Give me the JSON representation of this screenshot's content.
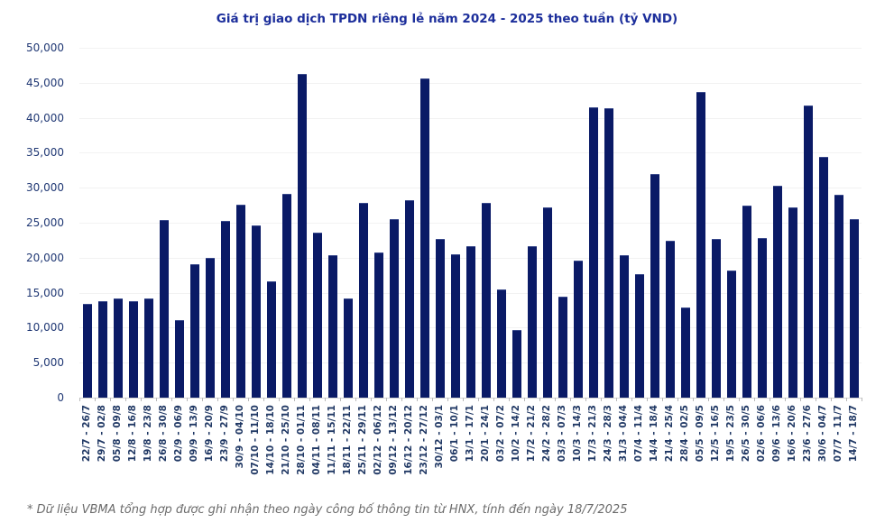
{
  "title": "Giá trị giao dịch TPDN riêng lẻ năm 2024 - 2025 theo tuần (tỷ VND)",
  "footnote": "* Dữ liệu VBMA tổng hợp được ghi nhận theo ngày công bố thông tin từ HNX, tính đến ngày 18/7/2025",
  "colors": {
    "bar": "#0a1a66",
    "title": "#1c2e9b",
    "axis_label": "#203864",
    "gridline": "#f2f2f2",
    "footnote": "#6b6b6b"
  },
  "chart_data": {
    "type": "bar",
    "title": "Giá trị giao dịch TPDN riêng lẻ năm 2024 - 2025 theo tuần (tỷ VND)",
    "xlabel": "",
    "ylabel": "tỷ VND",
    "ylim": [
      0,
      50000
    ],
    "y_tick_step": 5000,
    "y_tick_labels": [
      "0",
      "5,000",
      "10,000",
      "15,000",
      "20,000",
      "25,000",
      "30,000",
      "35,000",
      "40,000",
      "45,000",
      "50,000"
    ],
    "grid": "horizontal",
    "legend": "none",
    "categories": [
      "22/7 - 26/7",
      "29/7 - 02/8",
      "05/8 - 09/8",
      "12/8 - 16/8",
      "19/8 - 23/8",
      "26/8 - 30/8",
      "02/9 - 06/9",
      "09/9 - 13/9",
      "16/9 - 20/9",
      "23/9 - 27/9",
      "30/9 - 04/10",
      "07/10 - 11/10",
      "14/10 - 18/10",
      "21/10 - 25/10",
      "28/10 - 01/11",
      "04/11 - 08/11",
      "11/11 - 15/11",
      "18/11 - 22/11",
      "25/11 - 29/11",
      "02/12 - 06/12",
      "09/12 - 13/12",
      "16/12 - 20/12",
      "23/12 - 27/12",
      "30/12 - 03/1",
      "06/1 - 10/1",
      "13/1 - 17/1",
      "20/1 - 24/1",
      "03/2 - 07/2",
      "10/2 - 14/2",
      "17/2 - 21/2",
      "24/2 - 28/2",
      "03/3 - 07/3",
      "10/3 - 14/3",
      "17/3 - 21/3",
      "24/3 - 28/3",
      "31/3 - 04/4",
      "07/4 - 11/4",
      "14/4 - 18/4",
      "21/4 - 25/4",
      "28/4 - 02/5",
      "05/5 - 09/5",
      "12/5 - 16/5",
      "19/5 - 23/5",
      "26/5 - 30/5",
      "02/6 - 06/6",
      "09/6 - 13/6",
      "16/6 - 20/6",
      "23/6 - 27/6",
      "30/6 - 04/7",
      "07/7 - 11/7",
      "14/7 - 18/7"
    ],
    "values": [
      13300,
      13700,
      14100,
      13600,
      14000,
      25200,
      10900,
      18900,
      19800,
      25100,
      27400,
      24500,
      16500,
      29000,
      46100,
      23500,
      20200,
      14100,
      27700,
      20600,
      25400,
      28100,
      45500,
      22500,
      20300,
      21500,
      27700,
      15300,
      9500,
      21500,
      27000,
      14300,
      19500,
      41400,
      41200,
      20200,
      17500,
      31800,
      22300,
      12700,
      43600,
      22500,
      18000,
      27300,
      22700,
      30100,
      27000,
      41600,
      34300,
      28900,
      25400
    ]
  }
}
